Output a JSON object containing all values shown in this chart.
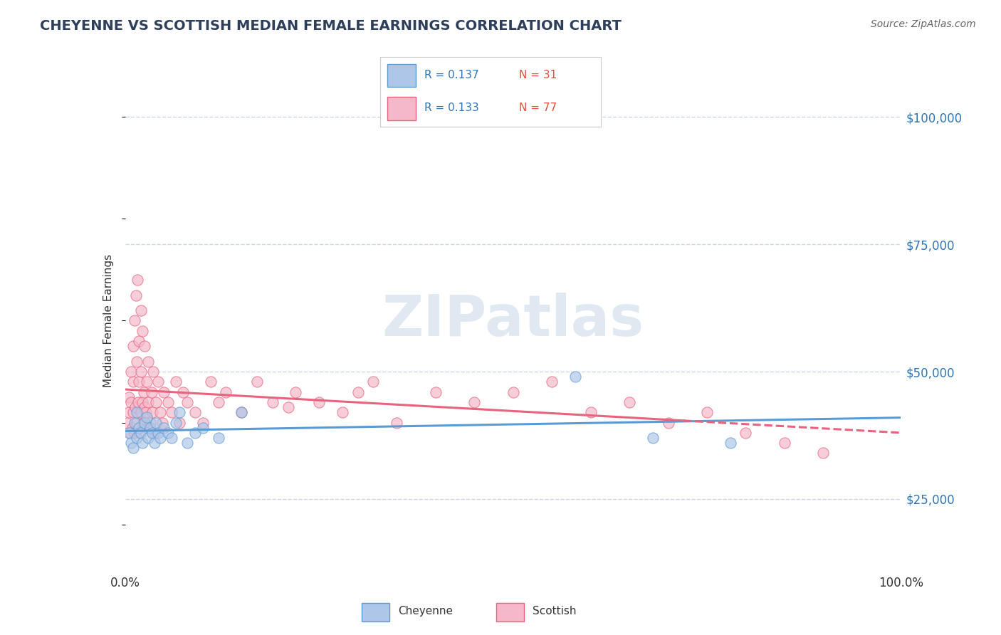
{
  "title": "CHEYENNE VS SCOTTISH MEDIAN FEMALE EARNINGS CORRELATION CHART",
  "source": "Source: ZipAtlas.com",
  "ylabel": "Median Female Earnings",
  "xlim": [
    0.0,
    1.0
  ],
  "ylim": [
    12000,
    108000
  ],
  "yticks": [
    25000,
    50000,
    75000,
    100000
  ],
  "ytick_labels": [
    "$25,000",
    "$50,000",
    "$75,000",
    "$100,000"
  ],
  "xticks": [
    0.0,
    1.0
  ],
  "xtick_labels": [
    "0.0%",
    "100.0%"
  ],
  "cheyenne_color": "#aec6e8",
  "scottish_color": "#f5b8ca",
  "cheyenne_edge_color": "#5b9bd5",
  "scottish_edge_color": "#e8637d",
  "cheyenne_line_color": "#5b9bd5",
  "scottish_line_color": "#e8637d",
  "legend_R_color": "#2e75b6",
  "legend_N_color": "#e74c3c",
  "watermark_text": "ZIPatlas",
  "watermark_color": "#c8d8e8",
  "background_color": "#ffffff",
  "grid_color": "#c8d8e8",
  "cheyenne_R": 0.137,
  "cheyenne_N": 31,
  "scottish_R": 0.133,
  "scottish_N": 77,
  "cheyenne_scatter_x": [
    0.005,
    0.008,
    0.01,
    0.012,
    0.015,
    0.015,
    0.018,
    0.02,
    0.022,
    0.025,
    0.028,
    0.03,
    0.032,
    0.035,
    0.038,
    0.04,
    0.042,
    0.045,
    0.05,
    0.055,
    0.06,
    0.065,
    0.07,
    0.08,
    0.09,
    0.1,
    0.12,
    0.15,
    0.58,
    0.68,
    0.78
  ],
  "cheyenne_scatter_y": [
    38000,
    36000,
    35000,
    40000,
    37000,
    42000,
    39000,
    38000,
    36000,
    40000,
    41000,
    37000,
    39000,
    38000,
    36000,
    40000,
    38000,
    37000,
    39000,
    38000,
    37000,
    40000,
    42000,
    36000,
    38000,
    39000,
    37000,
    42000,
    49000,
    37000,
    36000
  ],
  "scottish_scatter_x": [
    0.003,
    0.005,
    0.005,
    0.007,
    0.008,
    0.008,
    0.009,
    0.01,
    0.01,
    0.01,
    0.012,
    0.012,
    0.013,
    0.014,
    0.015,
    0.015,
    0.016,
    0.017,
    0.018,
    0.018,
    0.019,
    0.02,
    0.02,
    0.02,
    0.022,
    0.022,
    0.023,
    0.024,
    0.025,
    0.025,
    0.027,
    0.028,
    0.029,
    0.03,
    0.03,
    0.032,
    0.034,
    0.035,
    0.036,
    0.038,
    0.04,
    0.042,
    0.045,
    0.048,
    0.05,
    0.055,
    0.06,
    0.065,
    0.07,
    0.075,
    0.08,
    0.09,
    0.1,
    0.11,
    0.12,
    0.13,
    0.15,
    0.17,
    0.19,
    0.22,
    0.25,
    0.28,
    0.32,
    0.35,
    0.4,
    0.45,
    0.5,
    0.55,
    0.6,
    0.65,
    0.7,
    0.75,
    0.8,
    0.85,
    0.9,
    0.21,
    0.3
  ],
  "scottish_scatter_y": [
    40000,
    42000,
    45000,
    38000,
    44000,
    50000,
    39000,
    42000,
    48000,
    55000,
    60000,
    38000,
    43000,
    65000,
    40000,
    52000,
    68000,
    44000,
    48000,
    56000,
    38000,
    42000,
    50000,
    62000,
    44000,
    58000,
    40000,
    46000,
    43000,
    55000,
    42000,
    48000,
    39000,
    44000,
    52000,
    40000,
    46000,
    42000,
    50000,
    38000,
    44000,
    48000,
    42000,
    40000,
    46000,
    44000,
    42000,
    48000,
    40000,
    46000,
    44000,
    42000,
    40000,
    48000,
    44000,
    46000,
    42000,
    48000,
    44000,
    46000,
    44000,
    42000,
    48000,
    40000,
    46000,
    44000,
    46000,
    48000,
    42000,
    44000,
    40000,
    42000,
    38000,
    36000,
    34000,
    43000,
    46000
  ]
}
